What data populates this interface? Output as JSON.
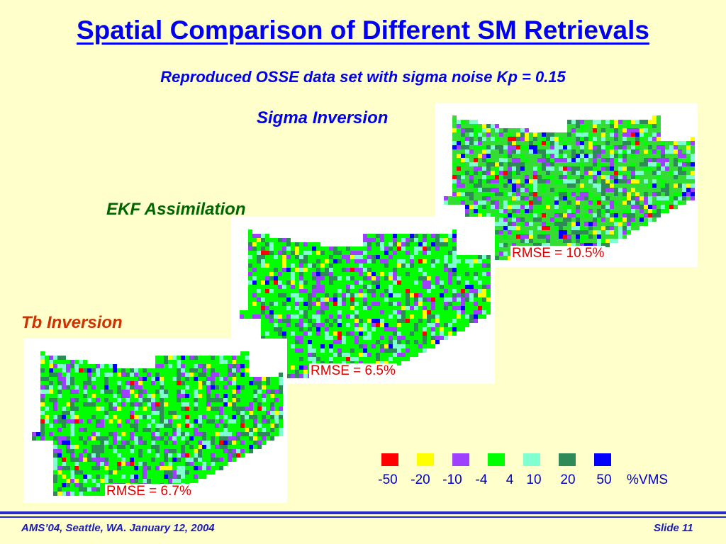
{
  "slide": {
    "title": "Spatial Comparison of Different SM Retrievals",
    "subtitle": "Reproduced OSSE data set with sigma noise Kp = 0.15"
  },
  "panels": {
    "sigma": {
      "label": "Sigma Inversion",
      "rmse": "RMSE = 10.5%"
    },
    "ekf": {
      "label": "EKF Assimilation",
      "rmse": "RMSE = 6.5%"
    },
    "tb": {
      "label": "Tb Inversion",
      "rmse": "RMSE = 6.7%"
    }
  },
  "legend": {
    "unit": "%VMS",
    "swatches": [
      {
        "color": "#ff0000"
      },
      {
        "color": "#ffff00"
      },
      {
        "color": "#a040ff"
      },
      {
        "color": "#00ff00"
      },
      {
        "color": "#80ffd0"
      },
      {
        "color": "#2e8b57"
      },
      {
        "color": "#0000ff"
      }
    ],
    "labels": [
      "-50",
      "-20",
      "-10",
      "-4",
      "4",
      "10",
      "20",
      "50"
    ]
  },
  "footer": {
    "left": "AMS’04, Seattle, WA. January 12, 2004",
    "right": "Slide 11"
  },
  "colors": {
    "title": "#0000ee",
    "sigma_label": "#0000ee",
    "ekf_label": "#006600",
    "tb_label": "#cc3300"
  }
}
